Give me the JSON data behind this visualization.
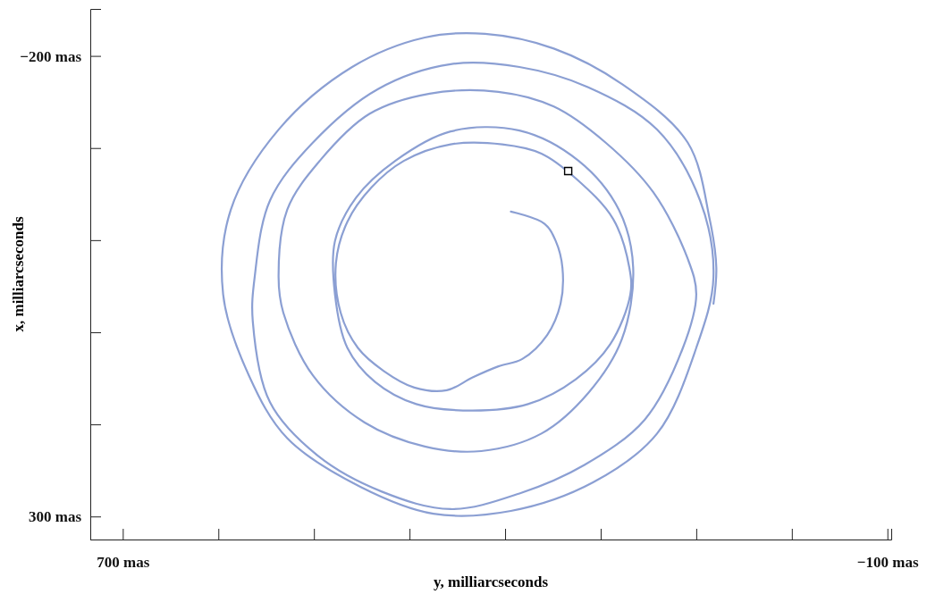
{
  "chart_data": {
    "type": "line",
    "xlabel": "y, milliarcseconds",
    "ylabel": "x, milliarcseconds",
    "xlim": [
      734,
      -104
    ],
    "ylim": [
      325,
      -251
    ],
    "xticks": [
      {
        "value": 700,
        "label": "700 mas"
      },
      {
        "value": 600,
        "label": null
      },
      {
        "value": 500,
        "label": null
      },
      {
        "value": 400,
        "label": null
      },
      {
        "value": 300,
        "label": null
      },
      {
        "value": 200,
        "label": null
      },
      {
        "value": 100,
        "label": null
      },
      {
        "value": 0,
        "label": null
      },
      {
        "value": -100,
        "label": "−100 mas"
      }
    ],
    "yticks": [
      {
        "value": -200,
        "label": "−200 mas"
      },
      {
        "value": -100,
        "label": null
      },
      {
        "value": 0,
        "label": null
      },
      {
        "value": 100,
        "label": null
      },
      {
        "value": 200,
        "label": null
      },
      {
        "value": 300,
        "label": "300 mas"
      }
    ],
    "series": [
      {
        "color": "#8b9fd3",
        "marker": "none",
        "x": [
          294,
          259,
          247,
          240,
          242,
          256,
          282,
          307,
          334,
          361,
          395,
          427,
          454,
          472,
          477,
          465,
          440,
          406,
          357,
          303,
          262,
          226,
          187,
          170,
          169,
          190,
          226,
          276,
          334,
          393,
          436,
          465,
          478,
          478,
          456,
          415,
          357,
          285,
          223,
          181,
          166,
          178,
          213,
          262,
          325,
          384,
          447,
          501,
          532,
          537,
          528,
          494,
          442,
          379,
          307,
          249,
          195,
          145,
          109,
          100,
          114,
          154,
          217,
          285,
          357,
          429,
          496,
          546,
          564,
          562,
          546,
          501,
          433,
          357,
          285,
          213,
          141,
          96,
          82,
          100,
          141,
          208,
          294,
          375,
          451,
          528,
          568,
          595,
          587,
          537,
          460,
          384,
          321,
          249,
          177,
          109,
          86,
          79,
          82
        ],
        "values": [
          -31,
          -18,
          1,
          30,
          69,
          103,
          129,
          137,
          149,
          163,
          160,
          142,
          117,
          79,
          25,
          -20,
          -57,
          -86,
          -104,
          -104,
          -94,
          -67,
          -23,
          30,
          59,
          113,
          151,
          178,
          185,
          178,
          154,
          117,
          59,
          1,
          -46,
          -86,
          -118,
          -119,
          -86,
          -33,
          30,
          108,
          166,
          210,
          229,
          224,
          198,
          147,
          79,
          40,
          -33,
          -86,
          -137,
          -159,
          -161,
          -145,
          -106,
          -52,
          20,
          59,
          117,
          195,
          244,
          275,
          292,
          273,
          234,
          176,
          88,
          40,
          -43,
          -106,
          -164,
          -191,
          -188,
          -166,
          -120,
          -43,
          40,
          117,
          210,
          263,
          294,
          297,
          268,
          215,
          147,
          59,
          -33,
          -120,
          -188,
          -220,
          -224,
          -208,
          -169,
          -106,
          -23,
          30,
          69
        ]
      },
      {
        "type": "scatter",
        "color": "#000000",
        "marker": "square",
        "x": [
          234
        ],
        "values": [
          -75
        ]
      }
    ]
  }
}
